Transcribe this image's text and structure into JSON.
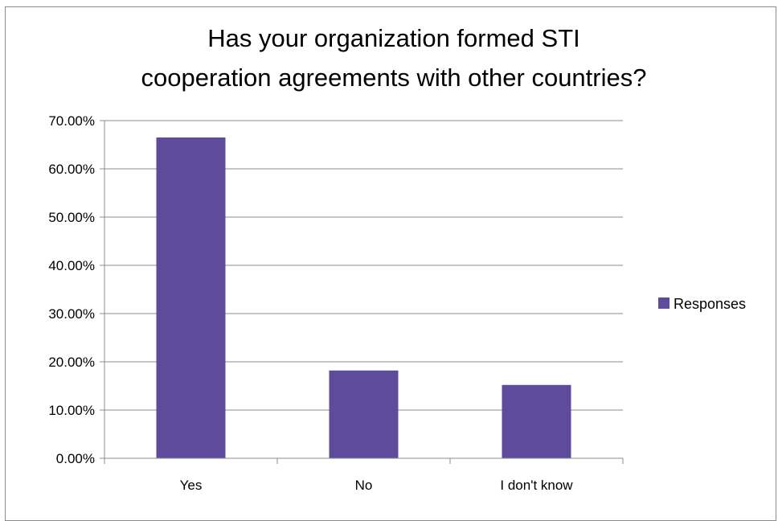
{
  "chart_data": {
    "type": "bar",
    "title": "Has your organization formed STI cooperation agreements with other countries?",
    "title_lines": [
      "Has your organization formed STI",
      "cooperation agreements with other countries?"
    ],
    "categories": [
      "Yes",
      "No",
      "I don't know"
    ],
    "series": [
      {
        "name": "Responses",
        "values": [
          66.5,
          18.2,
          15.2
        ],
        "color": "#5F4B9B"
      }
    ],
    "y_ticks": [
      "0.00%",
      "10.00%",
      "20.00%",
      "30.00%",
      "40.00%",
      "50.00%",
      "60.00%",
      "70.00%"
    ],
    "ylim": [
      0,
      70
    ],
    "xlabel": "",
    "ylabel": "",
    "grid": true,
    "legend_position": "right",
    "colors": {
      "bar": "#5F4B9B",
      "grid": "#8c8c8c",
      "axis": "#8c8c8c"
    }
  }
}
